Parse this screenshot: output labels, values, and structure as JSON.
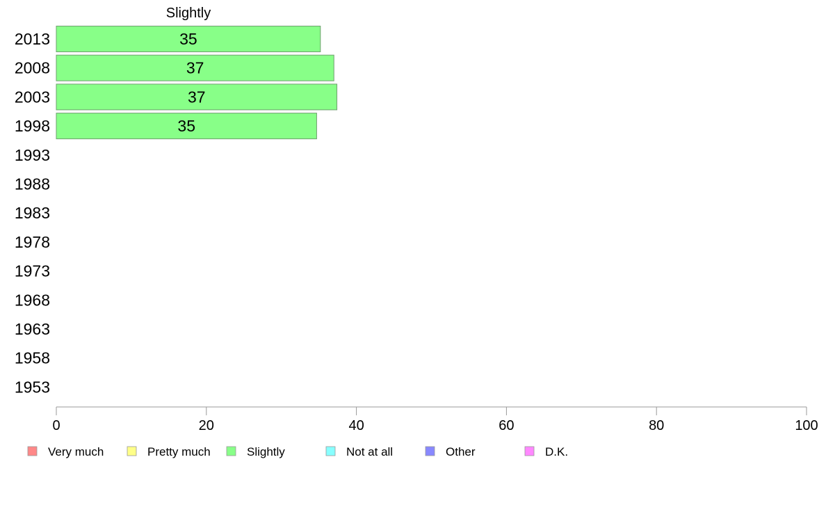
{
  "chart_data": {
    "type": "bar",
    "orientation": "horizontal",
    "facet_title": "Slightly",
    "categories": [
      "2013",
      "2008",
      "2003",
      "1998",
      "1993",
      "1988",
      "1983",
      "1978",
      "1973",
      "1968",
      "1963",
      "1958",
      "1953"
    ],
    "series": [
      {
        "name": "Slightly",
        "values": [
          35.2,
          37.0,
          37.4,
          34.7,
          null,
          null,
          null,
          null,
          null,
          null,
          null,
          null,
          null
        ],
        "labels": [
          "35",
          "37",
          "37",
          "35",
          "",
          "",
          "",
          "",
          "",
          "",
          "",
          "",
          ""
        ],
        "color": "#88ff88"
      }
    ],
    "xlim": [
      0,
      100
    ],
    "x_ticks": [
      "0",
      "20",
      "40",
      "60",
      "80",
      "100"
    ],
    "grid": false,
    "legend_position": "bottom",
    "legend": [
      {
        "label": "Very much",
        "color": "#ff8888"
      },
      {
        "label": "Pretty much",
        "color": "#ffff88"
      },
      {
        "label": "Slightly",
        "color": "#88ff88"
      },
      {
        "label": "Not at all",
        "color": "#88ffff"
      },
      {
        "label": "Other",
        "color": "#8888ff"
      },
      {
        "label": "D.K.",
        "color": "#ff88ff"
      }
    ]
  }
}
